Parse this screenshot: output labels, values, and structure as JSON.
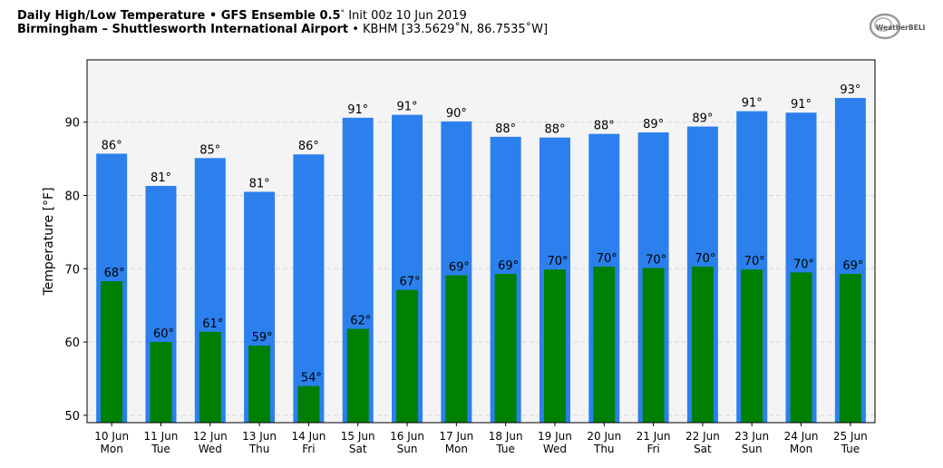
{
  "header": {
    "title_bold": "Daily High/Low Temperature • GFS Ensemble 0.5",
    "title_deg": "°",
    "title_rest": " Init 00z 10 Jun 2019",
    "location_bold": "Birmingham – Shuttlesworth International Airport",
    "location_rest": " • KBHM [33.5629˚N, 86.7535˚W]"
  },
  "logo": {
    "text": "WeatherBELL"
  },
  "colors": {
    "high": "#2b80ee",
    "low": "#008000",
    "plot_bg": "#f4f4f4"
  },
  "chart_data": {
    "type": "bar",
    "ylabel": "Temperature [°F]",
    "ylim": [
      49,
      98.5
    ],
    "yticks": [
      50,
      60,
      70,
      80,
      90
    ],
    "grid": true,
    "categories": [
      [
        "10 Jun",
        "Mon"
      ],
      [
        "11 Jun",
        "Tue"
      ],
      [
        "12 Jun",
        "Wed"
      ],
      [
        "13 Jun",
        "Thu"
      ],
      [
        "14 Jun",
        "Fri"
      ],
      [
        "15 Jun",
        "Sat"
      ],
      [
        "16 Jun",
        "Sun"
      ],
      [
        "17 Jun",
        "Mon"
      ],
      [
        "18 Jun",
        "Tue"
      ],
      [
        "19 Jun",
        "Wed"
      ],
      [
        "20 Jun",
        "Thu"
      ],
      [
        "21 Jun",
        "Fri"
      ],
      [
        "22 Jun",
        "Sat"
      ],
      [
        "23 Jun",
        "Sun"
      ],
      [
        "24 Jun",
        "Mon"
      ],
      [
        "25 Jun",
        "Tue"
      ]
    ],
    "series": [
      {
        "values": [
          85.7,
          81.3,
          85.1,
          80.5,
          85.6,
          90.6,
          91.0,
          90.1,
          88.0,
          87.9,
          88.4,
          88.6,
          89.4,
          91.5,
          91.3,
          93.3
        ],
        "labels": [
          "86°",
          "81°",
          "85°",
          "81°",
          "86°",
          "91°",
          "91°",
          "90°",
          "88°",
          "88°",
          "88°",
          "89°",
          "89°",
          "91°",
          "91°",
          "93°"
        ]
      },
      {
        "values": [
          68.3,
          60.0,
          61.4,
          59.5,
          54.0,
          61.8,
          67.1,
          69.1,
          69.3,
          69.9,
          70.3,
          70.1,
          70.3,
          69.9,
          69.5,
          69.3
        ],
        "labels": [
          "68°",
          "60°",
          "61°",
          "59°",
          "54°",
          "62°",
          "67°",
          "69°",
          "69°",
          "70°",
          "70°",
          "70°",
          "70°",
          "70°",
          "70°",
          "69°"
        ]
      }
    ]
  }
}
